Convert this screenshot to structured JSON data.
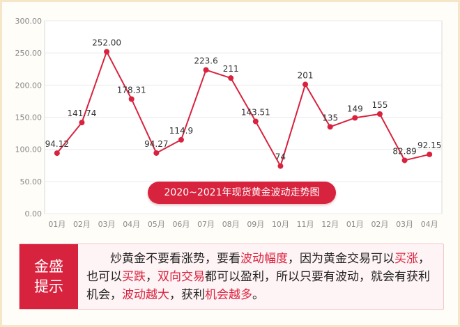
{
  "chart_data": {
    "type": "line",
    "title": "2020~2021年现货黄金波动走势图",
    "categories": [
      "01月",
      "02月",
      "03月",
      "04月",
      "05月",
      "06月",
      "07月",
      "08月",
      "09月",
      "10月",
      "11月",
      "12月",
      "01月",
      "02月",
      "03月",
      "04月"
    ],
    "series": [
      {
        "values": [
          94.12,
          141.74,
          252.0,
          178.31,
          94.27,
          114.9,
          223.6,
          211,
          143.51,
          74,
          201,
          135,
          149,
          155,
          82.89,
          92.15
        ]
      }
    ],
    "value_labels": [
      "94.12",
      "141.74",
      "252.00",
      "178.31",
      "94.27",
      "114.9",
      "223.6",
      "211",
      "143.51",
      "74",
      "201",
      "135",
      "149",
      "155",
      "82.89",
      "92.15"
    ],
    "yticks": [
      "0.00",
      "50.00",
      "100.00",
      "150.00",
      "200.00",
      "250.00",
      "300.00"
    ],
    "ylim": [
      0,
      300
    ],
    "grid": true,
    "colors": {
      "line": "#d8233f",
      "accent": "#d8233f"
    }
  },
  "tip": {
    "label_line1": "金盛",
    "label_line2": "提示",
    "segments": [
      {
        "text": "炒黄金不要看涨势，要看",
        "hl": false
      },
      {
        "text": "波动幅度",
        "hl": true
      },
      {
        "text": "，因为黄金交易可以",
        "hl": false
      },
      {
        "text": "买涨",
        "hl": true
      },
      {
        "text": "，也可以",
        "hl": false
      },
      {
        "text": "买跌",
        "hl": true
      },
      {
        "text": "，",
        "hl": false
      },
      {
        "text": "双向交易",
        "hl": true
      },
      {
        "text": "都可以盈利，所以只要有波动，就会有获利机会，",
        "hl": false
      },
      {
        "text": "波动越大",
        "hl": true
      },
      {
        "text": "，获利",
        "hl": false
      },
      {
        "text": "机会越多",
        "hl": true
      },
      {
        "text": "。",
        "hl": false
      }
    ]
  }
}
